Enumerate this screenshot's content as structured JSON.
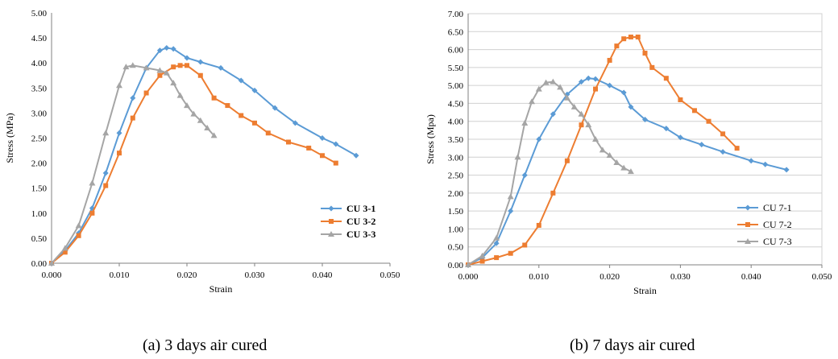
{
  "chart_data": [
    {
      "type": "line",
      "panel": "a",
      "caption": "(a) 3 days air cured",
      "xlabel": "Strain",
      "ylabel": "Stress (MPa)",
      "xlim": [
        0,
        0.05
      ],
      "ylim": [
        0,
        5
      ],
      "x_ticks": [
        "0.000",
        "0.010",
        "0.020",
        "0.030",
        "0.040",
        "0.050"
      ],
      "y_ticks": [
        "0.00",
        "0.50",
        "1.00",
        "1.50",
        "2.00",
        "2.50",
        "3.00",
        "3.50",
        "4.00",
        "4.50",
        "5.00"
      ],
      "grid": false,
      "legend_position": "right",
      "series": [
        {
          "name": "CU 3-1",
          "color": "#5B9BD5",
          "marker": "diamond",
          "points": [
            [
              0,
              0
            ],
            [
              0.002,
              0.25
            ],
            [
              0.004,
              0.6
            ],
            [
              0.006,
              1.1
            ],
            [
              0.008,
              1.8
            ],
            [
              0.01,
              2.6
            ],
            [
              0.012,
              3.3
            ],
            [
              0.014,
              3.9
            ],
            [
              0.016,
              4.25
            ],
            [
              0.017,
              4.3
            ],
            [
              0.018,
              4.28
            ],
            [
              0.02,
              4.1
            ],
            [
              0.022,
              4.02
            ],
            [
              0.025,
              3.9
            ],
            [
              0.028,
              3.65
            ],
            [
              0.03,
              3.45
            ],
            [
              0.033,
              3.1
            ],
            [
              0.036,
              2.8
            ],
            [
              0.04,
              2.5
            ],
            [
              0.042,
              2.38
            ],
            [
              0.045,
              2.15
            ]
          ]
        },
        {
          "name": "CU 3-2",
          "color": "#ED7D31",
          "marker": "square",
          "points": [
            [
              0,
              0
            ],
            [
              0.002,
              0.22
            ],
            [
              0.004,
              0.55
            ],
            [
              0.006,
              1.0
            ],
            [
              0.008,
              1.55
            ],
            [
              0.01,
              2.2
            ],
            [
              0.012,
              2.9
            ],
            [
              0.014,
              3.4
            ],
            [
              0.016,
              3.75
            ],
            [
              0.018,
              3.92
            ],
            [
              0.019,
              3.95
            ],
            [
              0.02,
              3.95
            ],
            [
              0.022,
              3.75
            ],
            [
              0.024,
              3.3
            ],
            [
              0.026,
              3.15
            ],
            [
              0.028,
              2.95
            ],
            [
              0.03,
              2.8
            ],
            [
              0.032,
              2.6
            ],
            [
              0.035,
              2.42
            ],
            [
              0.038,
              2.3
            ],
            [
              0.04,
              2.15
            ],
            [
              0.042,
              2.0
            ]
          ]
        },
        {
          "name": "CU 3-3",
          "color": "#A5A5A5",
          "marker": "triangle",
          "points": [
            [
              0,
              0
            ],
            [
              0.002,
              0.3
            ],
            [
              0.004,
              0.75
            ],
            [
              0.006,
              1.6
            ],
            [
              0.008,
              2.6
            ],
            [
              0.01,
              3.55
            ],
            [
              0.011,
              3.92
            ],
            [
              0.012,
              3.95
            ],
            [
              0.014,
              3.9
            ],
            [
              0.016,
              3.85
            ],
            [
              0.017,
              3.8
            ],
            [
              0.018,
              3.6
            ],
            [
              0.019,
              3.35
            ],
            [
              0.02,
              3.15
            ],
            [
              0.021,
              2.98
            ],
            [
              0.022,
              2.85
            ],
            [
              0.023,
              2.7
            ],
            [
              0.024,
              2.55
            ]
          ]
        }
      ]
    },
    {
      "type": "line",
      "panel": "b",
      "caption": "(b) 7 days air cured",
      "xlabel": "Strain",
      "ylabel": "Stress (Mpa)",
      "xlim": [
        0,
        0.05
      ],
      "ylim": [
        0,
        7
      ],
      "x_ticks": [
        "0.000",
        "0.010",
        "0.020",
        "0.030",
        "0.040",
        "0.050"
      ],
      "y_ticks": [
        "0.00",
        "0.50",
        "1.00",
        "1.50",
        "2.00",
        "2.50",
        "3.00",
        "3.50",
        "4.00",
        "4.50",
        "5.00",
        "5.50",
        "6.00",
        "6.50",
        "7.00"
      ],
      "grid": true,
      "legend_position": "right",
      "series": [
        {
          "name": "CU 7-1",
          "color": "#5B9BD5",
          "marker": "diamond",
          "points": [
            [
              0,
              0
            ],
            [
              0.002,
              0.2
            ],
            [
              0.004,
              0.6
            ],
            [
              0.006,
              1.5
            ],
            [
              0.008,
              2.5
            ],
            [
              0.01,
              3.5
            ],
            [
              0.012,
              4.2
            ],
            [
              0.014,
              4.75
            ],
            [
              0.016,
              5.1
            ],
            [
              0.017,
              5.2
            ],
            [
              0.018,
              5.18
            ],
            [
              0.02,
              5.0
            ],
            [
              0.022,
              4.8
            ],
            [
              0.023,
              4.4
            ],
            [
              0.025,
              4.05
            ],
            [
              0.028,
              3.8
            ],
            [
              0.03,
              3.55
            ],
            [
              0.033,
              3.35
            ],
            [
              0.036,
              3.15
            ],
            [
              0.04,
              2.9
            ],
            [
              0.042,
              2.8
            ],
            [
              0.045,
              2.65
            ]
          ]
        },
        {
          "name": "CU 7-2",
          "color": "#ED7D31",
          "marker": "square",
          "points": [
            [
              0,
              0
            ],
            [
              0.002,
              0.1
            ],
            [
              0.004,
              0.2
            ],
            [
              0.006,
              0.32
            ],
            [
              0.008,
              0.55
            ],
            [
              0.01,
              1.1
            ],
            [
              0.012,
              2.0
            ],
            [
              0.014,
              2.9
            ],
            [
              0.016,
              3.9
            ],
            [
              0.018,
              4.9
            ],
            [
              0.02,
              5.7
            ],
            [
              0.021,
              6.1
            ],
            [
              0.022,
              6.3
            ],
            [
              0.023,
              6.35
            ],
            [
              0.024,
              6.35
            ],
            [
              0.025,
              5.9
            ],
            [
              0.026,
              5.5
            ],
            [
              0.028,
              5.2
            ],
            [
              0.03,
              4.6
            ],
            [
              0.032,
              4.3
            ],
            [
              0.034,
              4.0
            ],
            [
              0.036,
              3.65
            ],
            [
              0.038,
              3.25
            ]
          ]
        },
        {
          "name": "CU 7-3",
          "color": "#A5A5A5",
          "marker": "triangle",
          "points": [
            [
              0,
              0
            ],
            [
              0.002,
              0.25
            ],
            [
              0.004,
              0.75
            ],
            [
              0.006,
              1.9
            ],
            [
              0.007,
              3.0
            ],
            [
              0.008,
              3.95
            ],
            [
              0.009,
              4.55
            ],
            [
              0.01,
              4.9
            ],
            [
              0.011,
              5.08
            ],
            [
              0.012,
              5.1
            ],
            [
              0.013,
              4.95
            ],
            [
              0.014,
              4.65
            ],
            [
              0.015,
              4.4
            ],
            [
              0.016,
              4.2
            ],
            [
              0.017,
              3.9
            ],
            [
              0.018,
              3.5
            ],
            [
              0.019,
              3.2
            ],
            [
              0.02,
              3.05
            ],
            [
              0.021,
              2.85
            ],
            [
              0.022,
              2.7
            ],
            [
              0.023,
              2.6
            ]
          ]
        }
      ]
    }
  ]
}
